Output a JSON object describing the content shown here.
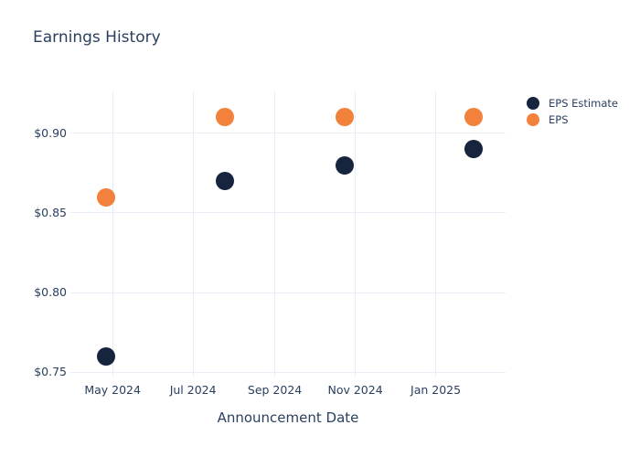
{
  "title": "Earnings History",
  "colors": {
    "eps_estimate": "#16243E",
    "eps": "#F2813B",
    "grid": "#E9EDF5",
    "text": "#2A3F5F",
    "background": "#FFFFFF"
  },
  "legend": {
    "position": "top-right",
    "items": [
      {
        "label": "EPS Estimate",
        "color": "#16243E"
      },
      {
        "label": "EPS",
        "color": "#F2813B"
      }
    ]
  },
  "chart_data": {
    "type": "scatter",
    "title": "Earnings History",
    "xlabel": "Announcement Date",
    "ylabel": "",
    "grid": true,
    "legend_position": "right",
    "xlim": [
      "2024-03-30",
      "2025-02-23"
    ],
    "ylim": [
      0.7474,
      0.9262
    ],
    "x_ticks": [
      {
        "date": "2024-05-01",
        "label": "May 2024"
      },
      {
        "date": "2024-07-01",
        "label": "Jul 2024"
      },
      {
        "date": "2024-09-01",
        "label": "Sep 2024"
      },
      {
        "date": "2024-11-01",
        "label": "Nov 2024"
      },
      {
        "date": "2025-01-01",
        "label": "Jan 2025"
      }
    ],
    "y_ticks": [
      {
        "value": 0.75,
        "label": "$0.75"
      },
      {
        "value": 0.8,
        "label": "$0.80"
      },
      {
        "value": 0.85,
        "label": "$0.85"
      },
      {
        "value": 0.9,
        "label": "$0.90"
      }
    ],
    "series": [
      {
        "name": "EPS Estimate",
        "color": "#16243E",
        "points": [
          {
            "x": "2024-04-26",
            "y": 0.76
          },
          {
            "x": "2024-07-25",
            "y": 0.87
          },
          {
            "x": "2024-10-24",
            "y": 0.88
          },
          {
            "x": "2025-01-30",
            "y": 0.89
          }
        ]
      },
      {
        "name": "EPS",
        "color": "#F2813B",
        "points": [
          {
            "x": "2024-04-26",
            "y": 0.86
          },
          {
            "x": "2024-07-25",
            "y": 0.91
          },
          {
            "x": "2024-10-24",
            "y": 0.91
          },
          {
            "x": "2025-01-30",
            "y": 0.91
          }
        ]
      }
    ]
  }
}
